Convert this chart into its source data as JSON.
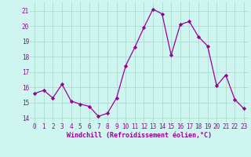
{
  "x": [
    0,
    1,
    2,
    3,
    4,
    5,
    6,
    7,
    8,
    9,
    10,
    11,
    12,
    13,
    14,
    15,
    16,
    17,
    18,
    19,
    20,
    21,
    22,
    23
  ],
  "y": [
    15.6,
    15.8,
    15.3,
    16.2,
    15.1,
    14.9,
    14.75,
    14.1,
    14.3,
    15.3,
    17.4,
    18.6,
    19.9,
    21.1,
    20.8,
    18.1,
    20.1,
    20.3,
    19.3,
    18.7,
    16.1,
    16.8,
    15.2,
    14.6
  ],
  "line_color": "#990099",
  "marker": "D",
  "marker_size": 2.2,
  "bg_color": "#cef5f0",
  "grid_color": "#aaddcc",
  "xlabel": "Windchill (Refroidissement éolien,°C)",
  "ylabel_ticks": [
    14,
    15,
    16,
    17,
    18,
    19,
    20,
    21
  ],
  "xlim": [
    -0.5,
    23.5
  ],
  "ylim": [
    13.7,
    21.6
  ],
  "tick_color": "#990099",
  "label_color": "#990099",
  "font_family": "monospace",
  "tick_fontsize": 5.5,
  "xlabel_fontsize": 6.0
}
